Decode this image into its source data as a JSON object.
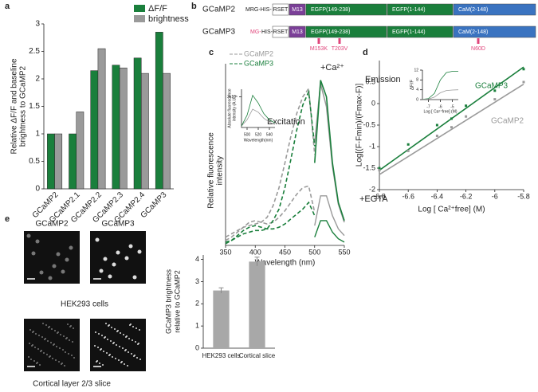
{
  "panel_labels": [
    "a",
    "b",
    "c",
    "d",
    "e"
  ],
  "chart_data": [
    {
      "type": "bar",
      "ylabel": [
        "Relative ΔF/F and baseline",
        "brightness to GCaMP2"
      ],
      "categories": [
        "GCaMP2",
        "GCaMP2.1",
        "GCaMP2.2",
        "GCaMP2.3",
        "GCaMP2.4",
        "GCaMP3"
      ],
      "series": [
        {
          "name": "ΔF/F",
          "color": "#1a7f3c",
          "values": [
            1,
            1,
            2.15,
            2.25,
            2.38,
            2.85
          ]
        },
        {
          "name": "brightness",
          "color": "#9a9a9a",
          "values": [
            1,
            1.4,
            2.55,
            2.2,
            2.1,
            2.1
          ]
        }
      ],
      "ylim": [
        0,
        3
      ],
      "yticks": [
        0,
        0.5,
        1,
        1.5,
        2,
        2.5,
        3
      ]
    },
    {
      "type": "line",
      "xlabel": "Wavelength (nm)",
      "ylabel": [
        "Relative fluorescence",
        "intensity"
      ],
      "annotations": [
        "Excitation",
        "+Ca²⁺",
        "Emission",
        "+EGTA"
      ],
      "x": [
        350,
        360,
        370,
        380,
        390,
        400,
        410,
        420,
        430,
        440,
        450,
        460,
        470,
        480,
        490,
        500,
        510,
        520,
        530,
        540,
        550
      ],
      "series": [
        {
          "name": "GCaMP2",
          "color": "#9a9a9a",
          "excitation_ca": [
            0.05,
            0.07,
            0.09,
            0.11,
            0.12,
            0.13,
            0.14,
            0.17,
            0.24,
            0.35,
            0.5,
            0.66,
            0.8,
            0.9,
            0.95,
            0.55,
            null,
            null,
            null,
            null,
            null
          ],
          "excitation_egta": [
            0.03,
            0.05,
            0.08,
            0.11,
            0.14,
            0.15,
            0.14,
            0.13,
            0.14,
            0.17,
            0.21,
            0.26,
            0.31,
            0.35,
            0.36,
            0.2,
            null,
            null,
            null,
            null,
            null
          ],
          "emission_ca": [
            null,
            null,
            null,
            null,
            null,
            null,
            null,
            null,
            null,
            null,
            null,
            null,
            null,
            null,
            null,
            0.62,
            0.98,
            0.84,
            0.48,
            0.25,
            0.14
          ],
          "emission_egta": [
            null,
            null,
            null,
            null,
            null,
            null,
            null,
            null,
            null,
            null,
            null,
            null,
            null,
            null,
            null,
            0.12,
            0.3,
            0.3,
            0.18,
            0.1,
            0.06
          ]
        },
        {
          "name": "GCaMP3",
          "color": "#1a7f3c",
          "excitation_ca": [
            0.02,
            0.03,
            0.05,
            0.07,
            0.08,
            0.09,
            0.09,
            0.1,
            0.15,
            0.22,
            0.35,
            0.52,
            0.7,
            0.85,
            0.93,
            0.6,
            null,
            null,
            null,
            null,
            null
          ],
          "excitation_egta": [
            0.01,
            0.03,
            0.06,
            0.09,
            0.11,
            0.12,
            0.11,
            0.1,
            0.1,
            0.11,
            0.13,
            0.16,
            0.19,
            0.22,
            0.26,
            0.18,
            null,
            null,
            null,
            null,
            null
          ],
          "emission_ca": [
            null,
            null,
            null,
            null,
            null,
            null,
            null,
            null,
            null,
            null,
            null,
            null,
            null,
            null,
            null,
            0.5,
            1.0,
            0.9,
            0.5,
            0.26,
            0.15
          ],
          "emission_egta": [
            null,
            null,
            null,
            null,
            null,
            null,
            null,
            null,
            null,
            null,
            null,
            null,
            null,
            null,
            null,
            0.05,
            0.15,
            0.15,
            0.08,
            0.04,
            0.02
          ]
        }
      ],
      "ylim": [
        0,
        1.1
      ],
      "xlim": [
        350,
        550
      ],
      "xticks": [
        350,
        400,
        450,
        500,
        550
      ],
      "inset": {
        "ylabel": [
          "Absolute fluorescence",
          "intensity (A.U.)"
        ],
        "xlabel": "Wavelength(nm)",
        "x": [
          490,
          500,
          510,
          520,
          530,
          540,
          550
        ],
        "series": [
          {
            "name": "GCaMP2",
            "color": "#9a9a9a",
            "values": [
              10000,
              50000,
              120000,
              100000,
              60000,
              35000,
              20000
            ]
          },
          {
            "name": "GCaMP3",
            "color": "#1a7f3c",
            "values": [
              10000,
              80000,
              210000,
              160000,
              90000,
              50000,
              30000
            ]
          }
        ],
        "xlim": [
          490,
          550
        ],
        "xticks": [
          500,
          520,
          540
        ],
        "ylim": [
          0,
          250000
        ],
        "yticks": [
          {
            "value": 200000,
            "label": "2x10⁵"
          }
        ]
      }
    },
    {
      "type": "scatter",
      "xlabel": "Log [ Ca²⁺free] (M)",
      "ylabel": "Log[(F-Fmin)/(Fmax-F)]",
      "x": [
        -6.8,
        -6.6,
        -6.4,
        -6.3,
        -6.2,
        -6,
        -5.8
      ],
      "series": [
        {
          "name": "GCaMP3",
          "color": "#1a7f3c",
          "values": [
            -1.5,
            -0.95,
            -0.5,
            -0.35,
            -0.05,
            0.3,
            0.8
          ],
          "fit": [
            -1.55,
            0.85
          ]
        },
        {
          "name": "GCaMP2",
          "color": "#9a9a9a",
          "values": [
            -1.55,
            -1.1,
            -0.75,
            -0.55,
            -0.3,
            0.1,
            0.5
          ],
          "fit": [
            -1.65,
            0.45
          ]
        }
      ],
      "xlim": [
        -6.8,
        -5.8
      ],
      "xticks": [
        -6.8,
        -6.6,
        -6.4,
        -6.2,
        -6,
        -5.8
      ],
      "ylim": [
        -2,
        1
      ],
      "yticks": [
        -2,
        -1.5,
        -1,
        -0.5,
        0,
        0.5
      ],
      "inset": {
        "ylabel": "ΔF/F",
        "xlabel": "Log [ Ca²⁺free] (M)",
        "x": [
          -7.5,
          -7,
          -6.5,
          -6,
          -5.5,
          -5,
          -4.5
        ],
        "series": [
          {
            "name": "GCaMP3",
            "color": "#1a7f3c",
            "values": [
              0.1,
              0.4,
              2.5,
              8,
              11,
              11.5,
              11.5
            ]
          },
          {
            "name": "GCaMP2",
            "color": "#9a9a9a",
            "values": [
              0.05,
              0.2,
              1,
              2.8,
              3.7,
              3.9,
              4
            ]
          }
        ],
        "xlim": [
          -7.5,
          -4.5
        ],
        "xticks": [
          -7,
          -6,
          -5
        ],
        "ylim": [
          0,
          12
        ],
        "yticks": [
          0,
          4,
          8,
          12
        ]
      }
    },
    {
      "type": "bar",
      "ylabel": [
        "GCaMP3 brightness",
        "relative to GCaMP2"
      ],
      "categories": [
        "HEK293 cells",
        "Cortical slice"
      ],
      "values": [
        2.6,
        3.9
      ],
      "errors": [
        0.12,
        0.2
      ],
      "color": "#a8a8a8",
      "ylim": [
        0,
        4.2
      ],
      "yticks": [
        0,
        1,
        2,
        3,
        4
      ]
    }
  ],
  "diagram": {
    "rows": [
      {
        "name": "GCaMP2",
        "prefix": [
          "MRG-HIS-"
        ]
      },
      {
        "name": "GCaMP3",
        "prefix": [
          "MG-",
          "HIS-"
        ]
      }
    ],
    "blocks": [
      "RSET",
      "M13",
      "EGFP(149-238)",
      "EGFP(1-144)",
      "CaM(2-148)"
    ],
    "mutations": [
      "M153K",
      "T203V",
      "N60D"
    ]
  },
  "images": {
    "columns": [
      "GCaMP2",
      "GCaMP3"
    ],
    "rows": [
      "HEK293 cells",
      "Cortical layer 2/3 slice"
    ]
  }
}
